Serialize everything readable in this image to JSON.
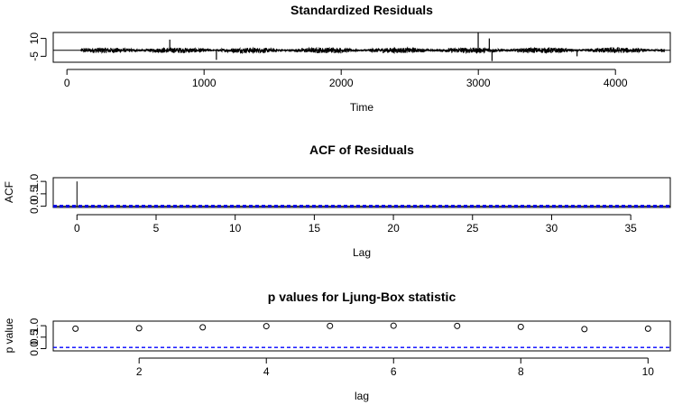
{
  "chart_data": [
    {
      "id": "resid",
      "type": "line",
      "title": "Standardized Residuals",
      "xlabel": "Time",
      "ylabel": "",
      "xlim": [
        -100,
        4400
      ],
      "ylim": [
        -10,
        15
      ],
      "x_ticks": [
        0,
        1000,
        2000,
        3000,
        4000
      ],
      "y_ticks": [
        -5,
        10
      ],
      "n_points": 4256,
      "x_start": 100,
      "x_end": 4355,
      "hlines": [
        0
      ],
      "series": [
        {
          "values_note_is_visual_noise": false,
          "bursts": [
            {
              "x": 750,
              "y": 9
            },
            {
              "x": 1090,
              "y": -8
            },
            {
              "x": 2999,
              "y": 15
            },
            {
              "x": 3080,
              "y": 10
            },
            {
              "x": 3100,
              "y": -9
            },
            {
              "x": 3720,
              "y": -5
            }
          ],
          "typical_amplitude": 2
        }
      ]
    },
    {
      "id": "acf",
      "type": "bar",
      "title": "ACF of Residuals",
      "xlabel": "Lag",
      "ylabel": "ACF",
      "xlim": [
        -1.5,
        37.5
      ],
      "ylim": [
        -0.05,
        1.15
      ],
      "x_ticks": [
        0,
        5,
        10,
        15,
        20,
        25,
        30,
        35
      ],
      "y_ticks": [
        0.0,
        0.5,
        1.0
      ],
      "y_tick_labels": [
        "0.0",
        "0.5",
        "1.0"
      ],
      "lags": [
        0,
        1,
        2,
        3,
        4,
        5,
        6,
        7,
        8,
        9,
        10,
        11,
        12,
        13,
        14,
        15,
        16,
        17,
        18,
        19,
        20,
        21,
        22,
        23,
        24,
        25,
        26,
        27,
        28,
        29,
        30,
        31,
        32,
        33,
        34,
        35,
        36,
        37
      ],
      "values": [
        1.0,
        0.01,
        -0.01,
        0.02,
        0.0,
        0.01,
        -0.01,
        0.0,
        0.01,
        -0.02,
        0.01,
        0.0,
        -0.01,
        0.01,
        0.0,
        0.02,
        -0.01,
        0.0,
        0.01,
        -0.01,
        0.0,
        0.01,
        0.0,
        -0.01,
        0.01,
        0.0,
        -0.01,
        0.0,
        0.01,
        0.0,
        -0.01,
        0.01,
        0.0,
        0.0,
        -0.01,
        0.01,
        0.0,
        0.0
      ],
      "conf_bound": 0.03,
      "conf_color": "#0000ff"
    },
    {
      "id": "ljung",
      "type": "scatter",
      "title": "p values for Ljung-Box statistic",
      "xlabel": "lag",
      "ylabel": "p value",
      "xlim": [
        0.65,
        10.35
      ],
      "ylim": [
        -0.1,
        1.2
      ],
      "x_ticks": [
        2,
        4,
        6,
        8,
        10
      ],
      "y_ticks": [
        0.0,
        0.5,
        1.0
      ],
      "y_tick_labels": [
        "0.0",
        "0.5",
        "1.0"
      ],
      "x": [
        1,
        2,
        3,
        4,
        5,
        6,
        7,
        8,
        9,
        10
      ],
      "values": [
        0.87,
        0.89,
        0.93,
        0.98,
        0.99,
        1.0,
        0.99,
        0.95,
        0.85,
        0.87
      ],
      "sig_level": 0.05,
      "sig_color": "#0000ff"
    }
  ]
}
